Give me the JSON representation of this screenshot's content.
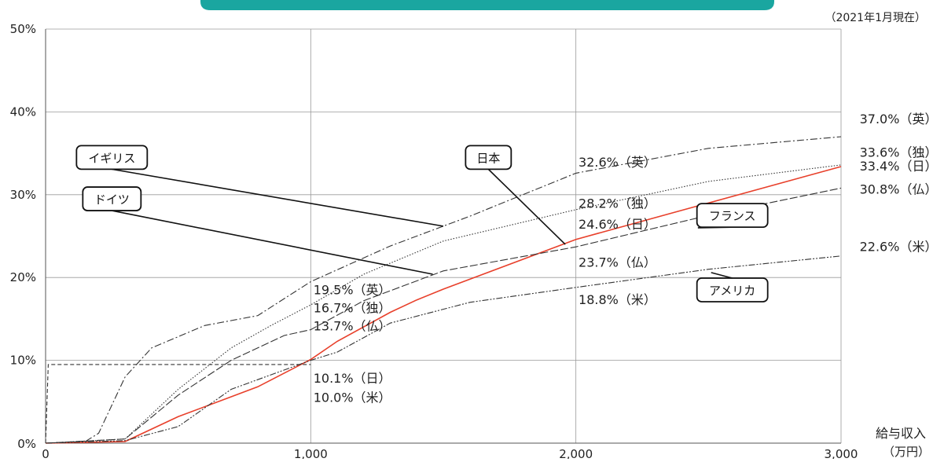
{
  "chart_data": {
    "type": "line",
    "note": "（2021年1月現在）",
    "xlabel": "給与収入",
    "xunit": "（万円）",
    "xlim": [
      0,
      3000
    ],
    "ylim": [
      0,
      50
    ],
    "grid": true,
    "x_ticks": [
      "0",
      "1,000",
      "2,000",
      "3,000"
    ],
    "y_ticks": [
      "0%",
      "10%",
      "20%",
      "30%",
      "40%",
      "50%"
    ],
    "series": [
      {
        "name": "日本",
        "color": "#e8402b",
        "style": "solid",
        "points": [
          [
            0,
            0
          ],
          [
            300,
            0.2
          ],
          [
            500,
            3.2
          ],
          [
            800,
            6.8
          ],
          [
            1000,
            10.1
          ],
          [
            1100,
            12.3
          ],
          [
            1300,
            15.8
          ],
          [
            1400,
            17.3
          ],
          [
            1500,
            18.6
          ],
          [
            2000,
            24.6
          ],
          [
            3000,
            33.4
          ]
        ]
      },
      {
        "name": "イギリス",
        "color": "#333333",
        "style": "dashdot",
        "points": [
          [
            0,
            0
          ],
          [
            150,
            0.2
          ],
          [
            200,
            1.2
          ],
          [
            300,
            8.0
          ],
          [
            400,
            11.5
          ],
          [
            600,
            14.2
          ],
          [
            800,
            15.4
          ],
          [
            1000,
            19.5
          ],
          [
            1300,
            23.8
          ],
          [
            1600,
            27.4
          ],
          [
            2000,
            32.6
          ],
          [
            2500,
            35.6
          ],
          [
            3000,
            37.0
          ]
        ]
      },
      {
        "name": "ドイツ",
        "color": "#333333",
        "style": "dotted",
        "points": [
          [
            0,
            0
          ],
          [
            300,
            0.5
          ],
          [
            500,
            6.5
          ],
          [
            700,
            11.5
          ],
          [
            850,
            14.2
          ],
          [
            1000,
            16.7
          ],
          [
            1200,
            20.4
          ],
          [
            1500,
            24.4
          ],
          [
            2000,
            28.2
          ],
          [
            2500,
            31.6
          ],
          [
            3000,
            33.6
          ]
        ]
      },
      {
        "name": "フランス",
        "color": "#333333",
        "style": "longdash",
        "points": [
          [
            0,
            0
          ],
          [
            300,
            0.5
          ],
          [
            500,
            5.8
          ],
          [
            700,
            10.0
          ],
          [
            900,
            13.0
          ],
          [
            1000,
            13.7
          ],
          [
            1200,
            17.2
          ],
          [
            1500,
            20.8
          ],
          [
            2000,
            23.7
          ],
          [
            2500,
            27.5
          ],
          [
            3000,
            30.8
          ]
        ]
      },
      {
        "name": "アメリカ",
        "color": "#333333",
        "style": "dashdotdot",
        "points": [
          [
            0,
            0
          ],
          [
            300,
            0.3
          ],
          [
            500,
            2.0
          ],
          [
            700,
            6.5
          ],
          [
            1000,
            10.0
          ],
          [
            1100,
            11.0
          ],
          [
            1300,
            14.5
          ],
          [
            1600,
            17.0
          ],
          [
            2000,
            18.8
          ],
          [
            2500,
            21.0
          ],
          [
            3000,
            22.6
          ]
        ]
      },
      {
        "name": "",
        "color": "#333333",
        "style": "dashed",
        "points": [
          [
            0,
            0
          ],
          [
            10,
            9.5
          ],
          [
            1000,
            9.5
          ]
        ]
      }
    ],
    "point_labels": [
      {
        "text": "10.1%（日）",
        "x": 1010,
        "y": 7.3
      },
      {
        "text": "10.0%（米）",
        "x": 1010,
        "y": 5.0
      },
      {
        "text": "19.5%（英）",
        "x": 1010,
        "y": 18.0
      },
      {
        "text": "16.7%（独）",
        "x": 1010,
        "y": 15.8
      },
      {
        "text": "13.7%（仏）",
        "x": 1010,
        "y": 13.6
      },
      {
        "text": "32.6%（英）",
        "x": 2010,
        "y": 33.4
      },
      {
        "text": "28.2%（独）",
        "x": 2010,
        "y": 28.4
      },
      {
        "text": "24.6%（日）",
        "x": 2010,
        "y": 25.9
      },
      {
        "text": "23.7%（仏）",
        "x": 2010,
        "y": 21.3
      },
      {
        "text": "18.8%（米）",
        "x": 2010,
        "y": 16.8
      },
      {
        "text": "37.0%（英）",
        "x": 3070,
        "y": 38.6
      },
      {
        "text": "33.6%（独）",
        "x": 3070,
        "y": 34.6
      },
      {
        "text": "33.4%（日）",
        "x": 3070,
        "y": 32.9
      },
      {
        "text": "30.8%（仏）",
        "x": 3070,
        "y": 30.1
      },
      {
        "text": "22.6%（米）",
        "x": 3070,
        "y": 23.2
      }
    ],
    "legend_boxes": [
      {
        "name": "イギリス",
        "bx": 250,
        "by": 34.5,
        "tx": 1500,
        "ty": 26.2
      },
      {
        "name": "ドイツ",
        "bx": 250,
        "by": 29.5,
        "tx": 1460,
        "ty": 20.4
      },
      {
        "name": "日本",
        "bx": 1670,
        "by": 34.5,
        "tx": 1960,
        "ty": 24.0
      },
      {
        "name": "フランス",
        "bx": 2590,
        "by": 27.5,
        "tx": 2460,
        "ty": 26.0
      },
      {
        "name": "アメリカ",
        "bx": 2590,
        "by": 18.5,
        "tx": 2510,
        "ty": 20.6
      }
    ]
  }
}
